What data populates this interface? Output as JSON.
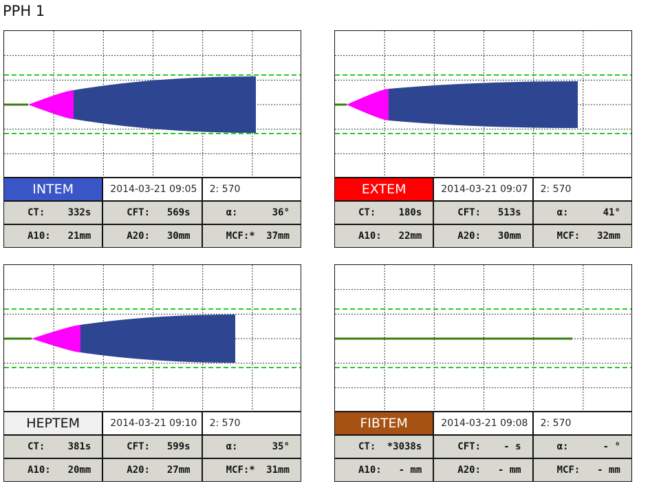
{
  "header": {
    "title": "PPH 1"
  },
  "panels": [
    {
      "name": "INTEM",
      "datetime": "2014-03-21  09:05",
      "channel": "2: 570",
      "rows": [
        [
          [
            "CT:",
            "332s"
          ],
          [
            "CFT:",
            "569s"
          ],
          [
            "α:",
            "36°"
          ]
        ],
        [
          [
            "A10:",
            "21mm"
          ],
          [
            "A20:",
            "30mm"
          ],
          [
            "MCF:*",
            "37mm"
          ]
        ]
      ]
    },
    {
      "name": "EXTEM",
      "datetime": "2014-03-21  09:07",
      "channel": "2: 570",
      "rows": [
        [
          [
            "CT:",
            "180s"
          ],
          [
            "CFT:",
            "513s"
          ],
          [
            "α:",
            "41°"
          ]
        ],
        [
          [
            "A10:",
            "22mm"
          ],
          [
            "A20:",
            "30mm"
          ],
          [
            "MCF:",
            "32mm"
          ]
        ]
      ]
    },
    {
      "name": "HEPTEM",
      "datetime": "2014-03-21  09:10",
      "channel": "2: 570",
      "rows": [
        [
          [
            "CT:",
            "381s"
          ],
          [
            "CFT:",
            "599s"
          ],
          [
            "α:",
            "35°"
          ]
        ],
        [
          [
            "A10:",
            "20mm"
          ],
          [
            "A20:",
            "27mm"
          ],
          [
            "MCF:*",
            "31mm"
          ]
        ]
      ]
    },
    {
      "name": "FIBTEM",
      "datetime": "2014-03-21  09:08",
      "channel": "2: 570",
      "rows": [
        [
          [
            "CT:",
            "*3038s"
          ],
          [
            "CFT:",
            "- s"
          ],
          [
            "α:",
            "- °"
          ]
        ],
        [
          [
            "A10:",
            "- mm"
          ],
          [
            "A20:",
            "- mm"
          ],
          [
            "MCF:",
            "- mm"
          ]
        ]
      ]
    }
  ]
}
